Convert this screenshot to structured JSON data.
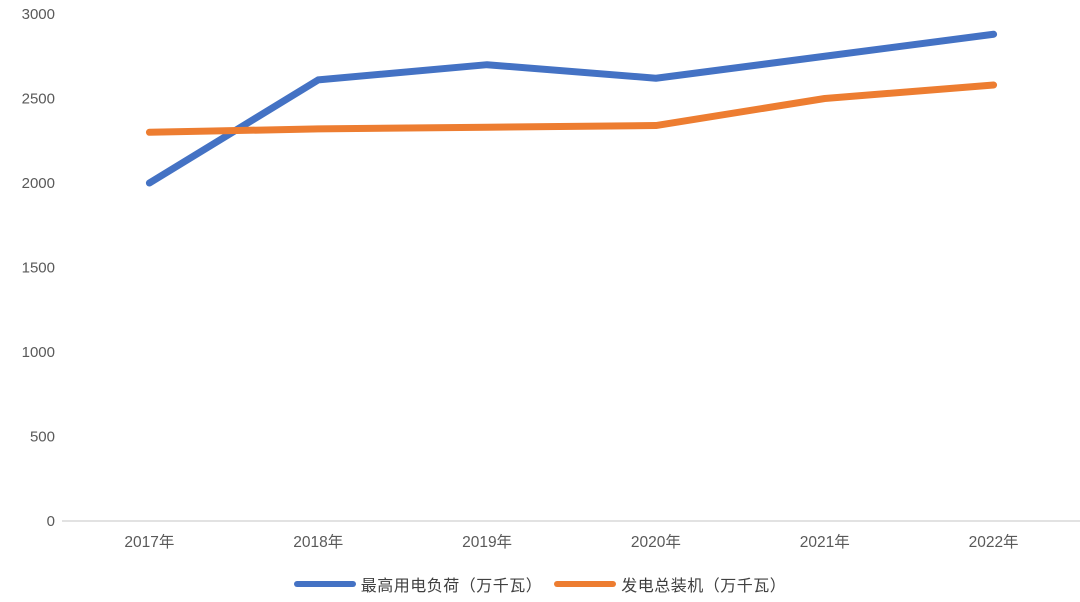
{
  "chart_data": {
    "type": "line",
    "categories": [
      "2017年",
      "2018年",
      "2019年",
      "2020年",
      "2021年",
      "2022年"
    ],
    "series": [
      {
        "name": "最高用电负荷（万千瓦）",
        "color": "#4472C4",
        "values": [
          2000,
          2610,
          2700,
          2620,
          2750,
          2880
        ]
      },
      {
        "name": "发电总装机（万千瓦）",
        "color": "#ED7D31",
        "values": [
          2300,
          2320,
          2330,
          2340,
          2500,
          2580
        ]
      }
    ],
    "title": "",
    "xlabel": "",
    "ylabel": "",
    "ylim": [
      0,
      3000
    ],
    "y_ticks": [
      0,
      500,
      1000,
      1500,
      2000,
      2500,
      3000
    ],
    "grid": false,
    "legend_position": "bottom",
    "axis_color": "#D9D9D9",
    "tick_color": "#595959",
    "line_width": 7
  }
}
